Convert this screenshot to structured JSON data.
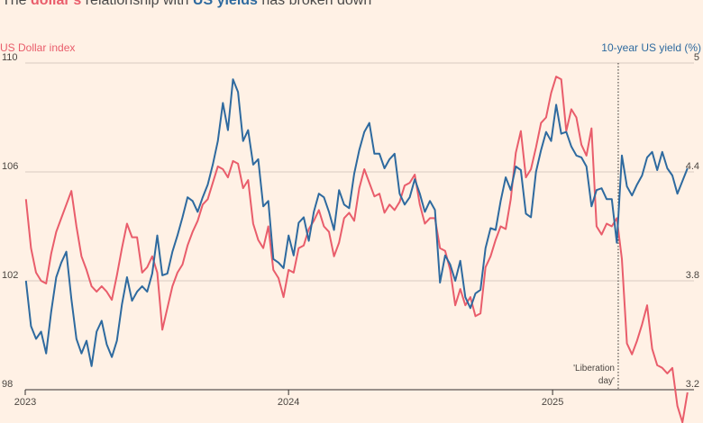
{
  "title": {
    "prefix": "The ",
    "red": "dollar's",
    "mid": " relationship with ",
    "blue": "US yields",
    "suffix": " has broken down"
  },
  "chart_data": {
    "type": "line",
    "left_axis_label": "US Dollar index",
    "right_axis_label": "10-year US yield (%)",
    "ylim_left": [
      98,
      110
    ],
    "ylim_right": [
      3.2,
      5
    ],
    "left_ticks": [
      110,
      106,
      102,
      98
    ],
    "right_ticks": [
      5,
      4.4,
      3.8,
      3.2
    ],
    "x_ticks": [
      "2023",
      "2024",
      "2025"
    ],
    "annotation": {
      "line1": "'Liberation",
      "line2": "day'",
      "date": "2025-04-02"
    },
    "colors": {
      "dollar": "#E95D6B",
      "yield": "#2E6A9F",
      "grid": "#D9CCC1"
    },
    "series": [
      {
        "axis": "left",
        "color": "#E95D6B",
        "points": [
          [
            "2023-01-02",
            105
          ],
          [
            "2023-01-09",
            103.2
          ],
          [
            "2023-01-16",
            102.3
          ],
          [
            "2023-01-23",
            102
          ],
          [
            "2023-01-30",
            101.9
          ],
          [
            "2023-02-06",
            103
          ],
          [
            "2023-02-13",
            103.8
          ],
          [
            "2023-02-20",
            104.3
          ],
          [
            "2023-02-27",
            104.8
          ],
          [
            "2023-03-06",
            105.3
          ],
          [
            "2023-03-13",
            104
          ],
          [
            "2023-03-20",
            102.9
          ],
          [
            "2023-03-27",
            102.4
          ],
          [
            "2023-04-03",
            101.8
          ],
          [
            "2023-04-10",
            101.6
          ],
          [
            "2023-04-17",
            101.8
          ],
          [
            "2023-04-24",
            101.6
          ],
          [
            "2023-05-01",
            101.3
          ],
          [
            "2023-05-08",
            102.2
          ],
          [
            "2023-05-15",
            103.2
          ],
          [
            "2023-05-22",
            104.1
          ],
          [
            "2023-05-29",
            103.6
          ],
          [
            "2023-06-05",
            103.6
          ],
          [
            "2023-06-12",
            102.3
          ],
          [
            "2023-06-19",
            102.5
          ],
          [
            "2023-06-26",
            102.9
          ],
          [
            "2023-07-03",
            102.3
          ],
          [
            "2023-07-10",
            100.2
          ],
          [
            "2023-07-17",
            101
          ],
          [
            "2023-07-24",
            101.8
          ],
          [
            "2023-07-31",
            102.3
          ],
          [
            "2023-08-07",
            102.6
          ],
          [
            "2023-08-14",
            103.3
          ],
          [
            "2023-08-21",
            103.8
          ],
          [
            "2023-08-28",
            104.2
          ],
          [
            "2023-09-04",
            104.8
          ],
          [
            "2023-09-11",
            105
          ],
          [
            "2023-09-18",
            105.6
          ],
          [
            "2023-09-25",
            106.2
          ],
          [
            "2023-10-02",
            106.1
          ],
          [
            "2023-10-09",
            105.8
          ],
          [
            "2023-10-16",
            106.4
          ],
          [
            "2023-10-23",
            106.3
          ],
          [
            "2023-10-30",
            105.4
          ],
          [
            "2023-11-06",
            105.7
          ],
          [
            "2023-11-13",
            104.1
          ],
          [
            "2023-11-20",
            103.5
          ],
          [
            "2023-11-27",
            103.2
          ],
          [
            "2023-12-04",
            104
          ],
          [
            "2023-12-11",
            102.4
          ],
          [
            "2023-12-18",
            102.1
          ],
          [
            "2023-12-25",
            101.4
          ],
          [
            "2024-01-01",
            102.4
          ],
          [
            "2024-01-08",
            102.3
          ],
          [
            "2024-01-15",
            103.2
          ],
          [
            "2024-01-22",
            103.3
          ],
          [
            "2024-01-29",
            103.9
          ],
          [
            "2024-02-05",
            104.2
          ],
          [
            "2024-02-12",
            104.6
          ],
          [
            "2024-02-19",
            104
          ],
          [
            "2024-02-26",
            103.8
          ],
          [
            "2024-03-04",
            102.9
          ],
          [
            "2024-03-11",
            103.4
          ],
          [
            "2024-03-18",
            104.3
          ],
          [
            "2024-03-25",
            104.5
          ],
          [
            "2024-04-01",
            104.2
          ],
          [
            "2024-04-08",
            105.4
          ],
          [
            "2024-04-15",
            106.1
          ],
          [
            "2024-04-22",
            105.6
          ],
          [
            "2024-04-29",
            105.1
          ],
          [
            "2024-05-06",
            105.2
          ],
          [
            "2024-05-13",
            104.5
          ],
          [
            "2024-05-20",
            104.8
          ],
          [
            "2024-05-27",
            104.6
          ],
          [
            "2024-06-03",
            104.9
          ],
          [
            "2024-06-10",
            105.5
          ],
          [
            "2024-06-17",
            105.6
          ],
          [
            "2024-06-24",
            105.9
          ],
          [
            "2024-07-01",
            104.8
          ],
          [
            "2024-07-08",
            104.1
          ],
          [
            "2024-07-15",
            104.3
          ],
          [
            "2024-07-22",
            104.3
          ],
          [
            "2024-07-29",
            103.2
          ],
          [
            "2024-08-05",
            103.1
          ],
          [
            "2024-08-12",
            102.4
          ],
          [
            "2024-08-19",
            101.1
          ],
          [
            "2024-08-26",
            101.7
          ],
          [
            "2024-09-02",
            101.1
          ],
          [
            "2024-09-09",
            101.4
          ],
          [
            "2024-09-16",
            100.7
          ],
          [
            "2024-09-23",
            100.8
          ],
          [
            "2024-09-30",
            102.5
          ],
          [
            "2024-10-07",
            102.9
          ],
          [
            "2024-10-14",
            103.5
          ],
          [
            "2024-10-21",
            104
          ],
          [
            "2024-10-28",
            103.9
          ],
          [
            "2024-11-04",
            105
          ],
          [
            "2024-11-11",
            106.7
          ],
          [
            "2024-11-18",
            107.5
          ],
          [
            "2024-11-25",
            105.8
          ],
          [
            "2024-12-02",
            106.1
          ],
          [
            "2024-12-09",
            106.9
          ],
          [
            "2024-12-16",
            107.8
          ],
          [
            "2024-12-23",
            108
          ],
          [
            "2024-12-30",
            108.9
          ],
          [
            "2025-01-06",
            109.5
          ],
          [
            "2025-01-13",
            109.4
          ],
          [
            "2025-01-20",
            107.5
          ],
          [
            "2025-01-27",
            108.3
          ],
          [
            "2025-02-03",
            108
          ],
          [
            "2025-02-10",
            107
          ],
          [
            "2025-02-17",
            106.6
          ],
          [
            "2025-02-24",
            107.6
          ],
          [
            "2025-03-03",
            104
          ],
          [
            "2025-03-10",
            103.7
          ],
          [
            "2025-03-17",
            104.1
          ],
          [
            "2025-03-24",
            104
          ],
          [
            "2025-03-31",
            104.3
          ],
          [
            "2025-04-07",
            102.8
          ],
          [
            "2025-04-14",
            99.7
          ],
          [
            "2025-04-21",
            99.3
          ],
          [
            "2025-04-28",
            99.8
          ],
          [
            "2025-05-05",
            100.4
          ],
          [
            "2025-05-12",
            101.1
          ],
          [
            "2025-05-19",
            99.5
          ],
          [
            "2025-05-26",
            98.9
          ],
          [
            "2025-06-02",
            98.8
          ],
          [
            "2025-06-09",
            98.6
          ],
          [
            "2025-06-16",
            98.8
          ],
          [
            "2025-06-23",
            97.4
          ],
          [
            "2025-06-30",
            96.8
          ],
          [
            "2025-07-07",
            97.9
          ]
        ]
      },
      {
        "axis": "right",
        "color": "#2E6A9F",
        "points": [
          [
            "2023-01-02",
            3.8
          ],
          [
            "2023-01-09",
            3.55
          ],
          [
            "2023-01-16",
            3.48
          ],
          [
            "2023-01-23",
            3.52
          ],
          [
            "2023-01-30",
            3.4
          ],
          [
            "2023-02-06",
            3.63
          ],
          [
            "2023-02-13",
            3.82
          ],
          [
            "2023-02-20",
            3.9
          ],
          [
            "2023-02-27",
            3.96
          ],
          [
            "2023-03-06",
            3.7
          ],
          [
            "2023-03-13",
            3.48
          ],
          [
            "2023-03-20",
            3.4
          ],
          [
            "2023-03-27",
            3.47
          ],
          [
            "2023-04-03",
            3.33
          ],
          [
            "2023-04-10",
            3.52
          ],
          [
            "2023-04-17",
            3.58
          ],
          [
            "2023-04-24",
            3.45
          ],
          [
            "2023-05-01",
            3.38
          ],
          [
            "2023-05-08",
            3.47
          ],
          [
            "2023-05-15",
            3.67
          ],
          [
            "2023-05-22",
            3.82
          ],
          [
            "2023-05-29",
            3.69
          ],
          [
            "2023-06-05",
            3.74
          ],
          [
            "2023-06-12",
            3.77
          ],
          [
            "2023-06-19",
            3.74
          ],
          [
            "2023-06-26",
            3.84
          ],
          [
            "2023-07-03",
            4.05
          ],
          [
            "2023-07-10",
            3.83
          ],
          [
            "2023-07-17",
            3.84
          ],
          [
            "2023-07-24",
            3.96
          ],
          [
            "2023-07-31",
            4.05
          ],
          [
            "2023-08-07",
            4.15
          ],
          [
            "2023-08-14",
            4.26
          ],
          [
            "2023-08-21",
            4.24
          ],
          [
            "2023-08-28",
            4.18
          ],
          [
            "2023-09-04",
            4.26
          ],
          [
            "2023-09-11",
            4.33
          ],
          [
            "2023-09-18",
            4.44
          ],
          [
            "2023-09-25",
            4.57
          ],
          [
            "2023-10-02",
            4.78
          ],
          [
            "2023-10-09",
            4.63
          ],
          [
            "2023-10-16",
            4.91
          ],
          [
            "2023-10-23",
            4.84
          ],
          [
            "2023-10-30",
            4.57
          ],
          [
            "2023-11-06",
            4.63
          ],
          [
            "2023-11-13",
            4.44
          ],
          [
            "2023-11-20",
            4.47
          ],
          [
            "2023-11-27",
            4.21
          ],
          [
            "2023-12-04",
            4.24
          ],
          [
            "2023-12-11",
            3.92
          ],
          [
            "2023-12-18",
            3.9
          ],
          [
            "2023-12-25",
            3.87
          ],
          [
            "2024-01-01",
            4.05
          ],
          [
            "2024-01-08",
            3.94
          ],
          [
            "2024-01-15",
            4.12
          ],
          [
            "2024-01-22",
            4.15
          ],
          [
            "2024-01-29",
            4.02
          ],
          [
            "2024-02-05",
            4.18
          ],
          [
            "2024-02-12",
            4.28
          ],
          [
            "2024-02-19",
            4.26
          ],
          [
            "2024-02-26",
            4.18
          ],
          [
            "2024-03-04",
            4.08
          ],
          [
            "2024-03-11",
            4.3
          ],
          [
            "2024-03-18",
            4.22
          ],
          [
            "2024-03-25",
            4.2
          ],
          [
            "2024-04-01",
            4.39
          ],
          [
            "2024-04-08",
            4.52
          ],
          [
            "2024-04-15",
            4.62
          ],
          [
            "2024-04-22",
            4.67
          ],
          [
            "2024-04-29",
            4.5
          ],
          [
            "2024-05-06",
            4.5
          ],
          [
            "2024-05-13",
            4.42
          ],
          [
            "2024-05-20",
            4.47
          ],
          [
            "2024-05-27",
            4.5
          ],
          [
            "2024-06-03",
            4.28
          ],
          [
            "2024-06-10",
            4.22
          ],
          [
            "2024-06-17",
            4.26
          ],
          [
            "2024-06-24",
            4.36
          ],
          [
            "2024-07-01",
            4.28
          ],
          [
            "2024-07-08",
            4.18
          ],
          [
            "2024-07-15",
            4.24
          ],
          [
            "2024-07-22",
            4.19
          ],
          [
            "2024-07-29",
            3.79
          ],
          [
            "2024-08-05",
            3.94
          ],
          [
            "2024-08-12",
            3.89
          ],
          [
            "2024-08-19",
            3.8
          ],
          [
            "2024-08-26",
            3.91
          ],
          [
            "2024-09-02",
            3.71
          ],
          [
            "2024-09-09",
            3.65
          ],
          [
            "2024-09-16",
            3.73
          ],
          [
            "2024-09-23",
            3.75
          ],
          [
            "2024-09-30",
            3.98
          ],
          [
            "2024-10-07",
            4.09
          ],
          [
            "2024-10-14",
            4.08
          ],
          [
            "2024-10-21",
            4.24
          ],
          [
            "2024-10-28",
            4.37
          ],
          [
            "2024-11-04",
            4.3
          ],
          [
            "2024-11-11",
            4.43
          ],
          [
            "2024-11-18",
            4.41
          ],
          [
            "2024-11-25",
            4.17
          ],
          [
            "2024-12-02",
            4.15
          ],
          [
            "2024-12-09",
            4.4
          ],
          [
            "2024-12-16",
            4.52
          ],
          [
            "2024-12-23",
            4.62
          ],
          [
            "2024-12-30",
            4.57
          ],
          [
            "2025-01-06",
            4.77
          ],
          [
            "2025-01-13",
            4.61
          ],
          [
            "2025-01-20",
            4.62
          ],
          [
            "2025-01-27",
            4.54
          ],
          [
            "2025-02-03",
            4.49
          ],
          [
            "2025-02-10",
            4.48
          ],
          [
            "2025-02-17",
            4.43
          ],
          [
            "2025-02-24",
            4.21
          ],
          [
            "2025-03-03",
            4.3
          ],
          [
            "2025-03-10",
            4.31
          ],
          [
            "2025-03-17",
            4.25
          ],
          [
            "2025-03-24",
            4.25
          ],
          [
            "2025-03-31",
            4.01
          ],
          [
            "2025-04-07",
            4.49
          ],
          [
            "2025-04-14",
            4.32
          ],
          [
            "2025-04-21",
            4.27
          ],
          [
            "2025-04-28",
            4.33
          ],
          [
            "2025-05-05",
            4.38
          ],
          [
            "2025-05-12",
            4.48
          ],
          [
            "2025-05-19",
            4.51
          ],
          [
            "2025-05-26",
            4.41
          ],
          [
            "2025-06-02",
            4.51
          ],
          [
            "2025-06-09",
            4.42
          ],
          [
            "2025-06-16",
            4.38
          ],
          [
            "2025-06-23",
            4.28
          ],
          [
            "2025-06-30",
            4.35
          ],
          [
            "2025-07-07",
            4.42
          ]
        ]
      }
    ]
  }
}
